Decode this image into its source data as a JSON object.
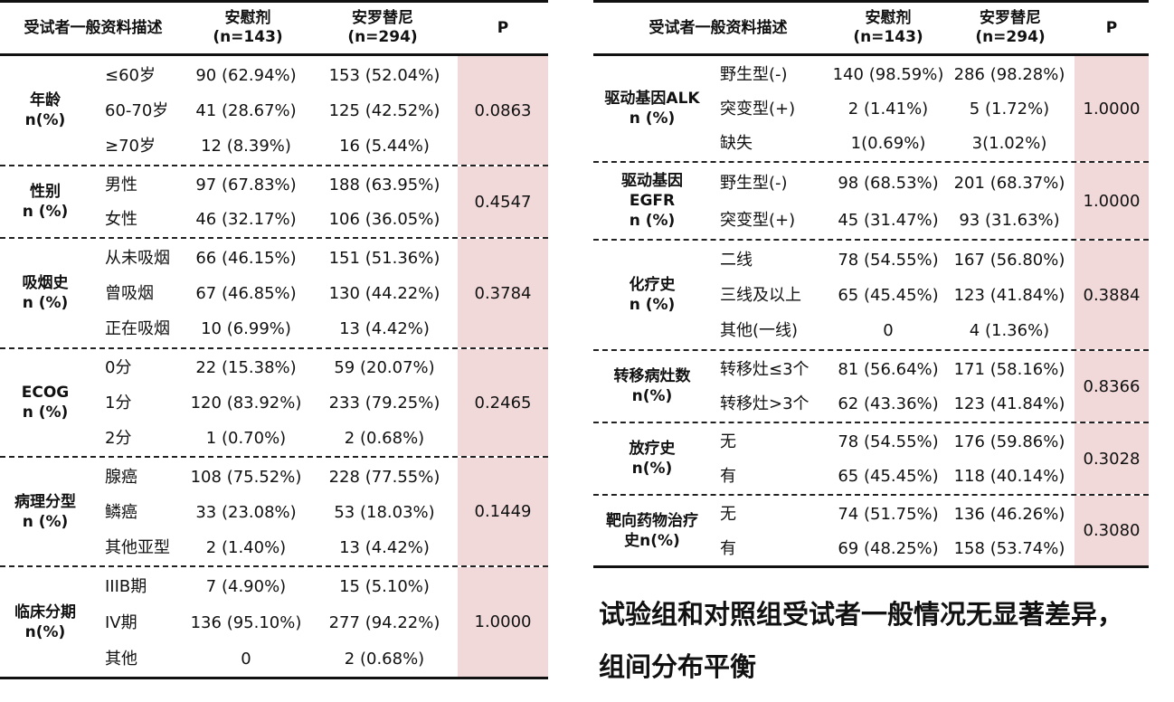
{
  "header": {
    "col_desc": "受试者一般资料描述",
    "col_placebo_name": "安慰剂",
    "col_placebo_n": "(n=143)",
    "col_anlotinib_name": "安罗替尼",
    "col_anlotinib_n": "(n=294)",
    "col_p": "P"
  },
  "left_groups": [
    {
      "label": [
        "年龄",
        "n(%)"
      ],
      "p": "0.0863",
      "rows": [
        {
          "sub": "≤60岁",
          "a": "90 (62.94%)",
          "b": "153 (52.04%)"
        },
        {
          "sub": "60-70岁",
          "a": "41 (28.67%)",
          "b": "125 (42.52%)"
        },
        {
          "sub": "≥70岁",
          "a": "12 (8.39%)",
          "b": "16 (5.44%)"
        }
      ]
    },
    {
      "label": [
        "性别",
        "n (%)"
      ],
      "p": "0.4547",
      "rows": [
        {
          "sub": "男性",
          "a": "97 (67.83%)",
          "b": "188 (63.95%)"
        },
        {
          "sub": "女性",
          "a": "46 (32.17%)",
          "b": "106 (36.05%)"
        }
      ]
    },
    {
      "label": [
        "吸烟史",
        "n (%)"
      ],
      "p": "0.3784",
      "rows": [
        {
          "sub": "从未吸烟",
          "a": "66 (46.15%)",
          "b": "151 (51.36%)"
        },
        {
          "sub": "曾吸烟",
          "a": "67 (46.85%)",
          "b": "130 (44.22%)"
        },
        {
          "sub": "正在吸烟",
          "a": "10 (6.99%)",
          "b": "13 (4.42%)"
        }
      ]
    },
    {
      "label": [
        "ECOG",
        "n (%)"
      ],
      "p": "0.2465",
      "rows": [
        {
          "sub": "0分",
          "a": "22 (15.38%)",
          "b": "59 (20.07%)"
        },
        {
          "sub": "1分",
          "a": "120 (83.92%)",
          "b": "233 (79.25%)"
        },
        {
          "sub": "2分",
          "a": "1 (0.70%)",
          "b": "2 (0.68%)"
        }
      ]
    },
    {
      "label": [
        "病理分型",
        "n (%)"
      ],
      "p": "0.1449",
      "rows": [
        {
          "sub": "腺癌",
          "a": "108 (75.52%)",
          "b": "228 (77.55%)"
        },
        {
          "sub": "鳞癌",
          "a": "33 (23.08%)",
          "b": "53 (18.03%)"
        },
        {
          "sub": "其他亚型",
          "a": "2 (1.40%)",
          "b": "13 (4.42%)"
        }
      ]
    },
    {
      "label": [
        "临床分期",
        "n(%)"
      ],
      "p": "1.0000",
      "rows": [
        {
          "sub": "IIIB期",
          "a": "7 (4.90%)",
          "b": "15 (5.10%)"
        },
        {
          "sub": "IV期",
          "a": "136 (95.10%)",
          "b": "277 (94.22%)"
        },
        {
          "sub": "其他",
          "a": "0",
          "b": "2 (0.68%)"
        }
      ]
    }
  ],
  "right_groups": [
    {
      "label": [
        "驱动基因ALK",
        "n (%)"
      ],
      "p": "1.0000",
      "rows": [
        {
          "sub": "野生型(-)",
          "a": "140 (98.59%)",
          "b": "286 (98.28%)"
        },
        {
          "sub": "突变型(+)",
          "a": "2 (1.41%)",
          "b": "5 (1.72%)"
        },
        {
          "sub": "缺失",
          "a": "1(0.69%)",
          "b": "3(1.02%)"
        }
      ]
    },
    {
      "label": [
        "驱动基因",
        "EGFR",
        "n (%)"
      ],
      "p": "1.0000",
      "rows": [
        {
          "sub": "野生型(-)",
          "a": "98 (68.53%)",
          "b": "201 (68.37%)"
        },
        {
          "sub": "突变型(+)",
          "a": "45 (31.47%)",
          "b": "93 (31.63%)"
        }
      ]
    },
    {
      "label": [
        "化疗史",
        "n (%)"
      ],
      "p": "0.3884",
      "rows": [
        {
          "sub": "二线",
          "a": "78 (54.55%)",
          "b": "167 (56.80%)"
        },
        {
          "sub": "三线及以上",
          "a": "65 (45.45%)",
          "b": "123 (41.84%)"
        },
        {
          "sub": "其他(一线)",
          "a": "0",
          "b": "4 (1.36%)"
        }
      ]
    },
    {
      "label": [
        "转移病灶数",
        "n(%)"
      ],
      "p": "0.8366",
      "rows": [
        {
          "sub": "转移灶≤3个",
          "a": "81 (56.64%)",
          "b": "171 (58.16%)"
        },
        {
          "sub": "转移灶>3个",
          "a": "62 (43.36%)",
          "b": "123 (41.84%)"
        }
      ]
    },
    {
      "label": [
        "放疗史",
        "n(%)"
      ],
      "p": "0.3028",
      "rows": [
        {
          "sub": "无",
          "a": "78 (54.55%)",
          "b": "176 (59.86%)"
        },
        {
          "sub": "有",
          "a": "65 (45.45%)",
          "b": "118 (40.14%)"
        }
      ]
    },
    {
      "label": [
        "靶向药物治疗",
        "史n(%)"
      ],
      "p": "0.3080",
      "rows": [
        {
          "sub": "无",
          "a": "74 (51.75%)",
          "b": "136 (46.26%)"
        },
        {
          "sub": "有",
          "a": "69 (48.25%)",
          "b": "158 (53.74%)"
        }
      ]
    }
  ],
  "conclusion": [
    "试验组和对照组受试者一般情况无显著差异，",
    "组间分布平衡"
  ]
}
